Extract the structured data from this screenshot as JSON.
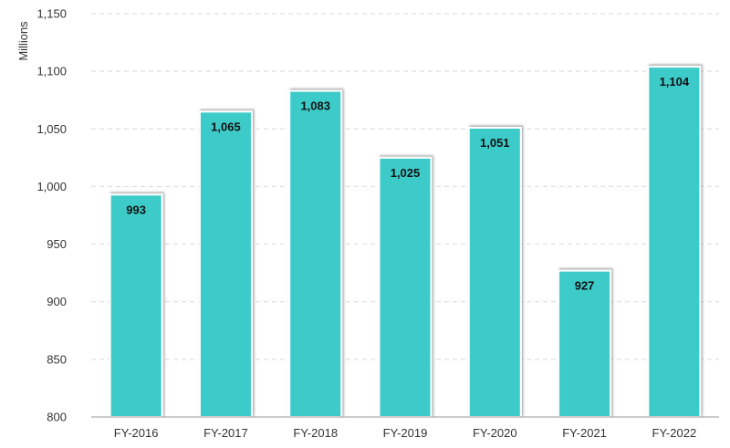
{
  "chart_data": {
    "type": "bar",
    "title": "",
    "xlabel": "",
    "ylabel": "Millions",
    "categories": [
      "FY-2016",
      "FY-2017",
      "FY-2018",
      "FY-2019",
      "FY-2020",
      "FY-2021",
      "FY-2022"
    ],
    "values": [
      993,
      1065,
      1083,
      1025,
      1051,
      927,
      1104
    ],
    "data_labels": [
      "993",
      "1,065",
      "1,083",
      "1,025",
      "1,051",
      "927",
      "1,104"
    ],
    "ylim": [
      800,
      1150
    ],
    "yticks": [
      800,
      850,
      900,
      950,
      1000,
      1050,
      1100,
      1150
    ],
    "ytick_labels": [
      "800",
      "850",
      "900",
      "950",
      "1,000",
      "1,050",
      "1,100",
      "1,150"
    ],
    "grid": "horizontal dashed",
    "legend": "none",
    "colors": {
      "bar": "#3ecbc9",
      "bar_border": "#ffffff",
      "grid": "#d9d9d9",
      "axis": "#999999"
    }
  }
}
